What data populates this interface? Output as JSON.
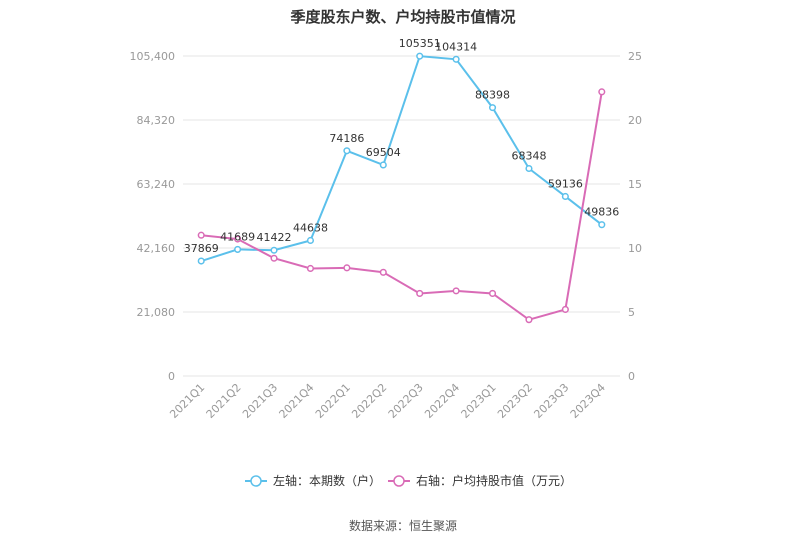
{
  "chart_data": {
    "type": "line",
    "title": "季度股东户数、户均持股市值情况",
    "categories": [
      "2021Q1",
      "2021Q2",
      "2021Q3",
      "2021Q4",
      "2022Q1",
      "2022Q2",
      "2022Q3",
      "2022Q4",
      "2023Q1",
      "2023Q2",
      "2023Q3",
      "2023Q4"
    ],
    "left_axis": {
      "ticks": [
        "0",
        "21,080",
        "42,160",
        "63,240",
        "84,320",
        "105,400"
      ],
      "ylim": [
        0,
        105400
      ]
    },
    "right_axis": {
      "ticks": [
        "0",
        "5",
        "10",
        "15",
        "20",
        "25"
      ],
      "ylim": [
        0,
        25
      ]
    },
    "series": [
      {
        "name": "左轴：本期数（户）",
        "axis": "left",
        "color": "#5bc0eb",
        "values": [
          37869,
          41689,
          41422,
          44638,
          74186,
          69504,
          105351,
          104314,
          88398,
          68348,
          59136,
          49836
        ],
        "labels": [
          "37869",
          "41689",
          "41422",
          "44638",
          "74186",
          "69504",
          "105351",
          "104314",
          "88398",
          "68348",
          "59136",
          "49836"
        ]
      },
      {
        "name": "右轴：户均持股市值（万元）",
        "axis": "right",
        "color": "#d96bb6",
        "values": [
          11.0,
          10.7,
          9.2,
          8.4,
          8.45,
          8.1,
          6.45,
          6.65,
          6.45,
          4.4,
          5.2,
          22.2
        ]
      }
    ],
    "legend_position": "bottom",
    "grid": true,
    "source": "数据来源：恒生聚源"
  }
}
